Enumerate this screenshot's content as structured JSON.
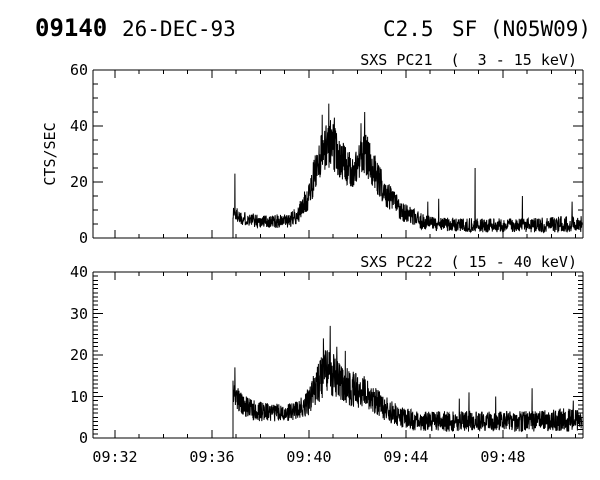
{
  "colors": {
    "foreground": "#000000",
    "background": "#ffffff"
  },
  "header": {
    "event_number": "09140",
    "date": "26-DEC-93",
    "goes_class": "C2.5",
    "flare_type_location": "SF (N05W09)"
  },
  "x_axis": {
    "tick_times_minutes_after_0900": [
      32,
      36,
      40,
      44,
      48
    ],
    "tick_labels": [
      "09:32",
      "09:36",
      "09:40",
      "09:44",
      "09:48"
    ],
    "minor_step_minutes": 1,
    "range_minutes_after_0900": [
      31.1,
      51.3
    ]
  },
  "chart_data": [
    {
      "type": "line",
      "title": "SXS PC21  (  3 - 15 keV)",
      "ylabel": "CTS/SEC",
      "ylim": [
        0,
        60
      ],
      "yticks": [
        0,
        20,
        40,
        60
      ],
      "y_minor_step": 5,
      "xlim_minutes": [
        31.1,
        51.3
      ],
      "grid": false,
      "legend": "none",
      "series": {
        "name": "SXS PC21 (3-15 keV)",
        "seed": 1337,
        "t_start": 36.87,
        "t_end": 51.25,
        "sample_step_minutes": 0.01,
        "starts_from_zero": true,
        "envelope_t_mean_noise": [
          [
            36.87,
            9,
            3
          ],
          [
            37.3,
            7,
            2.5
          ],
          [
            38.0,
            6,
            2.5
          ],
          [
            39.2,
            6,
            2.5
          ],
          [
            39.6,
            9,
            3.5
          ],
          [
            40.0,
            15,
            5
          ],
          [
            40.3,
            25,
            7
          ],
          [
            40.6,
            32,
            8
          ],
          [
            40.9,
            34,
            9
          ],
          [
            41.2,
            30,
            8
          ],
          [
            41.5,
            26,
            7
          ],
          [
            41.8,
            23,
            6
          ],
          [
            42.1,
            28,
            7
          ],
          [
            42.35,
            30,
            8
          ],
          [
            42.6,
            26,
            7
          ],
          [
            42.9,
            20,
            6
          ],
          [
            43.3,
            15,
            5
          ],
          [
            43.7,
            11,
            4
          ],
          [
            44.1,
            8,
            3.5
          ],
          [
            44.6,
            6,
            3
          ],
          [
            45.2,
            5,
            2.5
          ],
          [
            47.0,
            4.5,
            2.5
          ],
          [
            49.0,
            4.5,
            2.5
          ],
          [
            50.6,
            5,
            3
          ],
          [
            51.25,
            5,
            3
          ]
        ],
        "spikes_t_value": [
          [
            36.95,
            23
          ],
          [
            40.55,
            44
          ],
          [
            40.82,
            48
          ],
          [
            41.05,
            43
          ],
          [
            42.15,
            41
          ],
          [
            42.3,
            45
          ],
          [
            44.9,
            13
          ],
          [
            45.35,
            14
          ],
          [
            46.85,
            25
          ],
          [
            48.8,
            15
          ],
          [
            50.85,
            13
          ]
        ]
      }
    },
    {
      "type": "line",
      "title": "SXS PC22  ( 15 - 40 keV)",
      "ylabel": "",
      "ylim": [
        0,
        40
      ],
      "yticks": [
        0,
        10,
        20,
        30,
        40
      ],
      "y_minor_step": 1,
      "xlim_minutes": [
        31.1,
        51.3
      ],
      "grid": false,
      "legend": "none",
      "series": {
        "name": "SXS PC22 (15-40 keV)",
        "seed": 7331,
        "t_start": 36.87,
        "t_end": 51.25,
        "sample_step_minutes": 0.01,
        "starts_from_zero": true,
        "envelope_t_mean_noise": [
          [
            36.87,
            11,
            3
          ],
          [
            37.25,
            8,
            2.5
          ],
          [
            37.8,
            6.5,
            2.5
          ],
          [
            39.0,
            6,
            2
          ],
          [
            39.6,
            7,
            2.5
          ],
          [
            40.0,
            9,
            3.5
          ],
          [
            40.35,
            13,
            5
          ],
          [
            40.7,
            16,
            5.5
          ],
          [
            41.0,
            15,
            5.5
          ],
          [
            41.4,
            13,
            5
          ],
          [
            41.8,
            12,
            4.5
          ],
          [
            42.3,
            11,
            4
          ],
          [
            42.7,
            9,
            3.5
          ],
          [
            43.2,
            7,
            3
          ],
          [
            43.8,
            5,
            2.5
          ],
          [
            44.5,
            4,
            2.5
          ],
          [
            47.0,
            4,
            2.5
          ],
          [
            49.5,
            4,
            2.5
          ],
          [
            50.8,
            4.5,
            3
          ],
          [
            51.25,
            4,
            2.5
          ]
        ],
        "spikes_t_value": [
          [
            36.95,
            17
          ],
          [
            40.6,
            24
          ],
          [
            40.88,
            27
          ],
          [
            41.15,
            22
          ],
          [
            41.5,
            21
          ],
          [
            46.2,
            9.5
          ],
          [
            46.6,
            11
          ],
          [
            47.7,
            10
          ],
          [
            49.2,
            12
          ],
          [
            50.9,
            9
          ]
        ]
      }
    }
  ]
}
